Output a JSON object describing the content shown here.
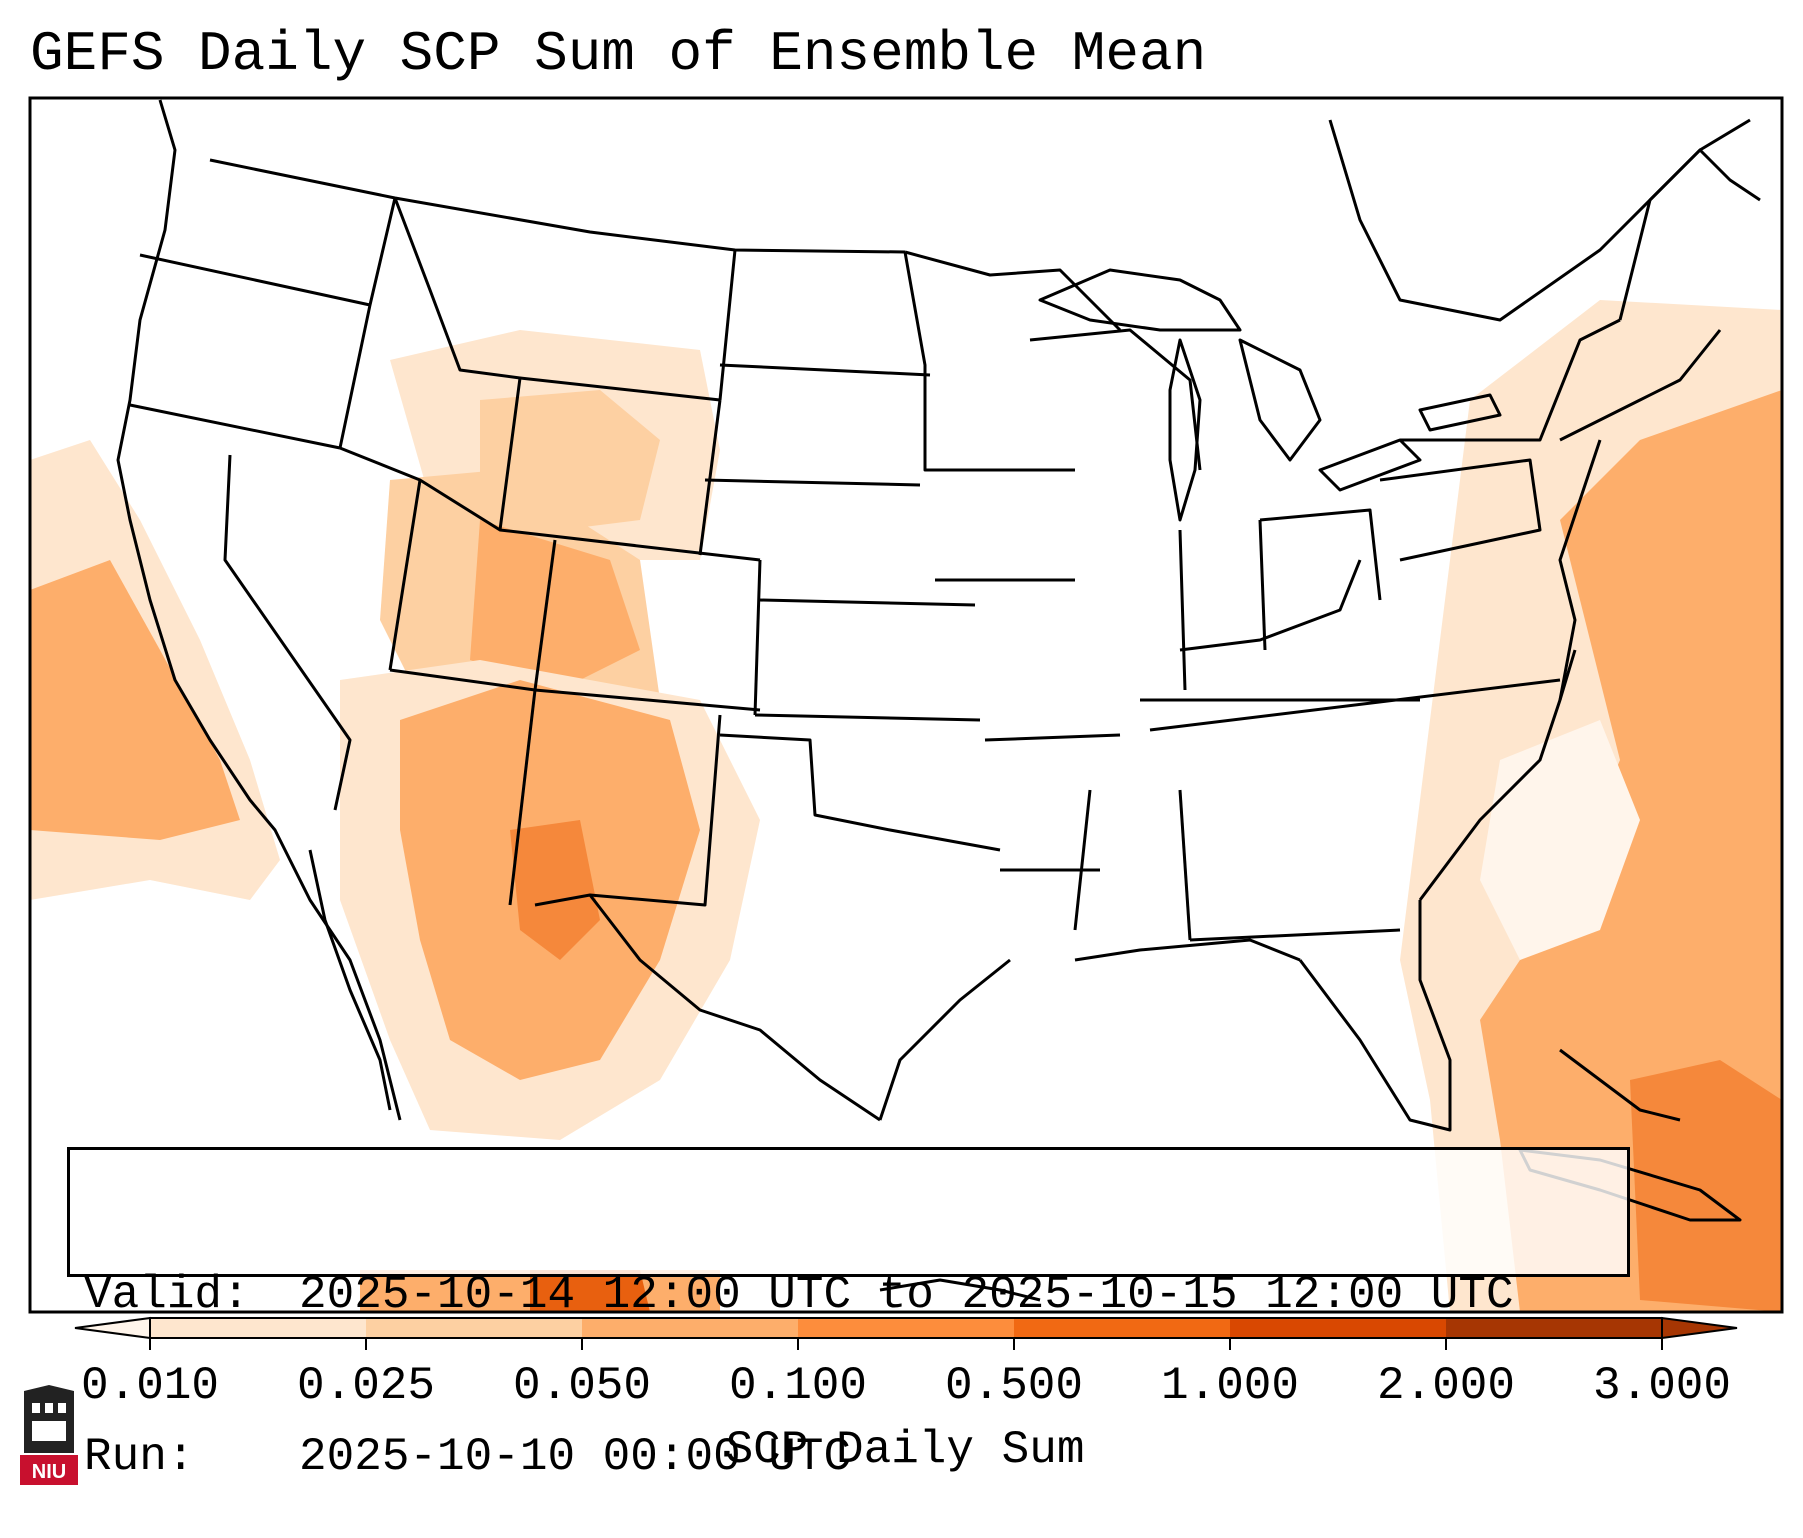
{
  "title": "GEFS Daily SCP Sum of Ensemble Mean",
  "info": {
    "valid_label": "Valid:",
    "valid_value": "2025-10-14 12:00 UTC to 2025-10-15 12:00 UTC",
    "run_label": "Run:",
    "run_value": "2025-10-10 00:00 UTC"
  },
  "colorbar": {
    "label": "SCP Daily Sum",
    "ticks": [
      "0.010",
      "0.025",
      "0.050",
      "0.100",
      "0.500",
      "1.000",
      "2.000",
      "3.000"
    ],
    "colors": [
      "#fff5eb",
      "#fee6ce",
      "#fdd0a2",
      "#fdae6b",
      "#fd8d3c",
      "#f16913",
      "#d94801",
      "#a63603"
    ],
    "extend": "both"
  },
  "logo": {
    "text": "NIU",
    "accent": "#c8102e"
  },
  "map": {
    "region": "Continental United States",
    "shading_colors": {
      "lightest": "#fff5eb",
      "light": "#fee6ce",
      "medium": "#fdd0a2",
      "orange": "#fdae6b",
      "dark": "#f5883b",
      "darkest": "#e8600f"
    }
  }
}
